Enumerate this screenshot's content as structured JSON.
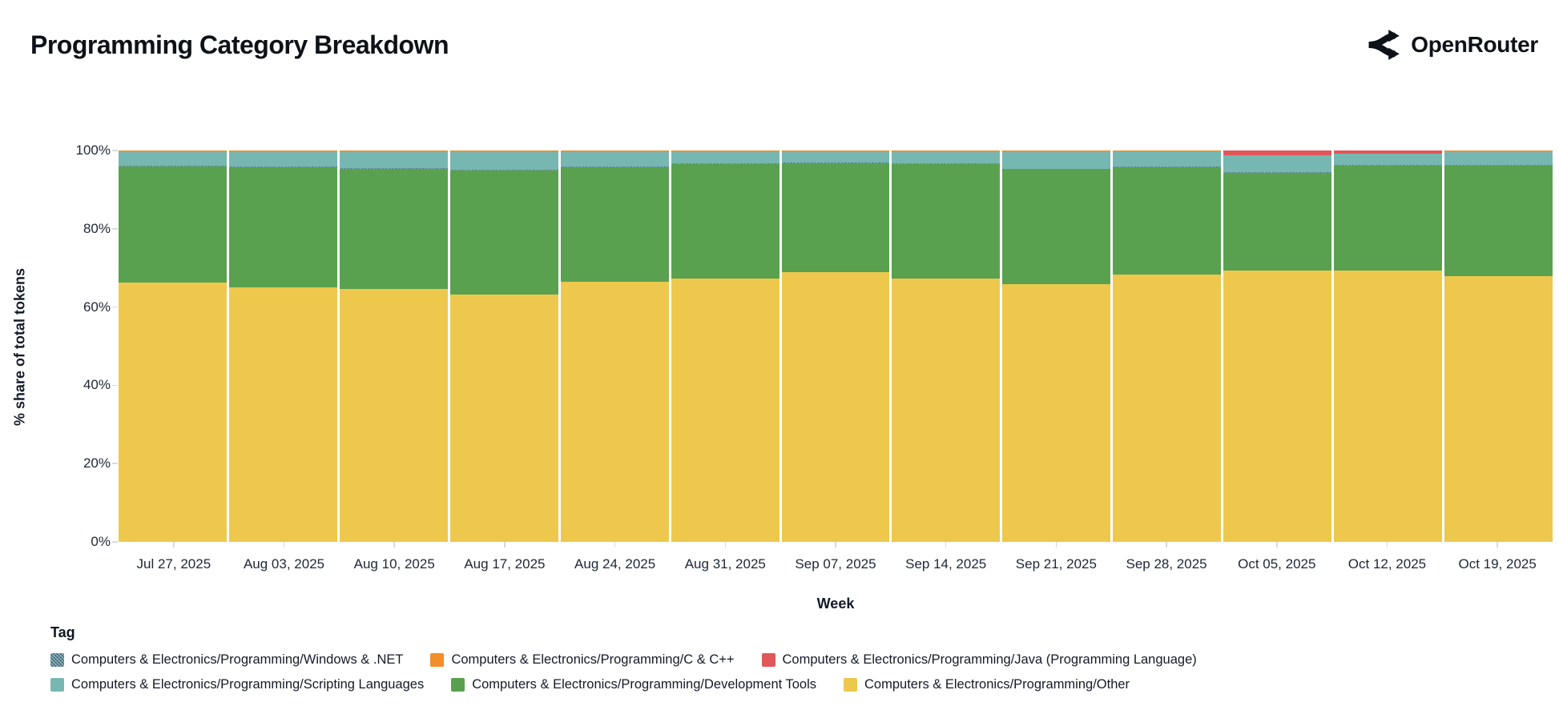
{
  "header": {
    "title": "Programming Category Breakdown",
    "brand": "OpenRouter"
  },
  "chart_data": {
    "type": "bar",
    "stacked": true,
    "normalized_percent": true,
    "title": "Programming Category Breakdown",
    "xlabel": "Week",
    "ylabel": "% share of total tokens",
    "ylim": [
      0,
      100
    ],
    "ytick_labels": [
      "0%",
      "20%",
      "40%",
      "60%",
      "80%",
      "100%"
    ],
    "grid": false,
    "categories": [
      "Jul 27, 2025",
      "Aug 03, 2025",
      "Aug 10, 2025",
      "Aug 17, 2025",
      "Aug 24, 2025",
      "Aug 31, 2025",
      "Sep 07, 2025",
      "Sep 14, 2025",
      "Sep 21, 2025",
      "Sep 28, 2025",
      "Oct 05, 2025",
      "Oct 12, 2025",
      "Oct 19, 2025"
    ],
    "series": [
      {
        "name": "Computers & Electronics/Programming/Other",
        "color": "#edc84d",
        "values": [
          66.3,
          65.0,
          64.6,
          63.2,
          66.4,
          67.3,
          69.0,
          67.3,
          65.8,
          68.3,
          69.3,
          69.4,
          67.8
        ]
      },
      {
        "name": "Computers & Electronics/Programming/Development Tools",
        "color": "#59a14f",
        "values": [
          29.7,
          30.7,
          30.7,
          31.7,
          29.3,
          29.2,
          27.7,
          29.2,
          29.4,
          27.4,
          25.0,
          26.7,
          28.3
        ]
      },
      {
        "name": "Computers & Electronics/Programming/Windows & .NET",
        "color": "pattern",
        "values": [
          0.2,
          0.2,
          0.2,
          0.2,
          0.2,
          0.2,
          0.2,
          0.2,
          0.2,
          0.2,
          0.2,
          0.2,
          0.2
        ]
      },
      {
        "name": "Computers & Electronics/Programming/Scripting Languages",
        "color": "#76b7b2",
        "values": [
          3.5,
          3.8,
          4.2,
          4.6,
          3.8,
          3.0,
          2.8,
          3.0,
          4.3,
          3.8,
          4.2,
          2.8,
          3.4
        ]
      },
      {
        "name": "Computers & Electronics/Programming/C & C++",
        "color": "#f28e2b",
        "values": [
          0.3,
          0.3,
          0.3,
          0.3,
          0.3,
          0.3,
          0.3,
          0.3,
          0.3,
          0.3,
          0.1,
          0.1,
          0.3
        ]
      },
      {
        "name": "Computers & Electronics/Programming/Java (Programming Language)",
        "color": "#e15759",
        "values": [
          0,
          0,
          0,
          0,
          0,
          0,
          0,
          0,
          0,
          0,
          1.2,
          0.8,
          0
        ]
      }
    ],
    "legend": {
      "title": "Tag",
      "position": "bottom-left",
      "rows": [
        [
          "Computers & Electronics/Programming/Windows & .NET",
          "Computers & Electronics/Programming/C & C++",
          "Computers & Electronics/Programming/Java (Programming Language)"
        ],
        [
          "Computers & Electronics/Programming/Scripting Languages",
          "Computers & Electronics/Programming/Development Tools",
          "Computers & Electronics/Programming/Other"
        ]
      ]
    }
  }
}
